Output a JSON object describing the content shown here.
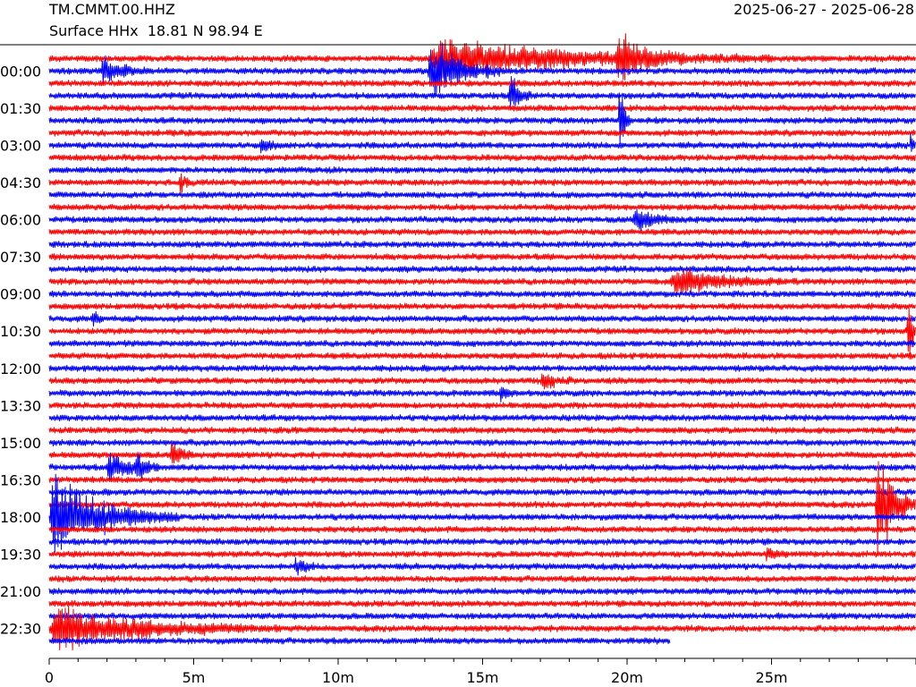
{
  "header": {
    "station": "TM.CMMT.00.HHZ",
    "subtitle": "Surface HHx  18.81 N 98.94 E",
    "date_range": "2025-06-27 - 2025-06-28"
  },
  "colors": {
    "odd": "#ff0000",
    "even": "#0000ff",
    "axis": "#000000"
  },
  "chart_data": {
    "type": "line",
    "plot_kind": "helicorder",
    "minutes_per_line": 30,
    "num_lines": 48,
    "xlim": [
      0,
      30
    ],
    "x_ticks": [
      {
        "value": 0,
        "label": "0"
      },
      {
        "value": 5,
        "label": "5m"
      },
      {
        "value": 10,
        "label": "10m"
      },
      {
        "value": 15,
        "label": "15m"
      },
      {
        "value": 20,
        "label": "20m"
      },
      {
        "value": 25,
        "label": "25m"
      }
    ],
    "y_ticks": [
      {
        "line": 1,
        "label": "00:00"
      },
      {
        "line": 4,
        "label": "01:30"
      },
      {
        "line": 7,
        "label": "03:00"
      },
      {
        "line": 10,
        "label": "04:30"
      },
      {
        "line": 13,
        "label": "06:00"
      },
      {
        "line": 16,
        "label": "07:30"
      },
      {
        "line": 19,
        "label": "09:00"
      },
      {
        "line": 22,
        "label": "10:30"
      },
      {
        "line": 25,
        "label": "12:00"
      },
      {
        "line": 28,
        "label": "13:30"
      },
      {
        "line": 31,
        "label": "15:00"
      },
      {
        "line": 34,
        "label": "16:30"
      },
      {
        "line": 37,
        "label": "18:00"
      },
      {
        "line": 40,
        "label": "19:30"
      },
      {
        "line": 43,
        "label": "21:00"
      },
      {
        "line": 46,
        "label": "22:30"
      }
    ],
    "last_line_end_minute": 21.5,
    "events": [
      {
        "line": 1,
        "start": 1.8,
        "duration": 1.6,
        "amp": 2.2
      },
      {
        "line": 0,
        "start": 13.1,
        "duration": 12.0,
        "amp": 2.8
      },
      {
        "line": 1,
        "start": 13.1,
        "duration": 2.6,
        "amp": 5.0
      },
      {
        "line": 3,
        "start": 15.9,
        "duration": 0.8,
        "amp": 4.0
      },
      {
        "line": 0,
        "start": 19.6,
        "duration": 2.5,
        "amp": 3.0
      },
      {
        "line": 5,
        "start": 19.7,
        "duration": 0.4,
        "amp": 8.0
      },
      {
        "line": 7,
        "start": 7.3,
        "duration": 0.8,
        "amp": 1.2
      },
      {
        "line": 10,
        "start": 4.5,
        "duration": 0.5,
        "amp": 1.5
      },
      {
        "line": 13,
        "start": 20.2,
        "duration": 1.8,
        "amp": 1.6
      },
      {
        "line": 18,
        "start": 21.5,
        "duration": 4.5,
        "amp": 2.0
      },
      {
        "line": 21,
        "start": 1.5,
        "duration": 0.4,
        "amp": 1.3
      },
      {
        "line": 26,
        "start": 17.0,
        "duration": 1.2,
        "amp": 1.4
      },
      {
        "line": 27,
        "start": 15.6,
        "duration": 0.5,
        "amp": 1.3
      },
      {
        "line": 32,
        "start": 4.2,
        "duration": 0.8,
        "amp": 2.4
      },
      {
        "line": 33,
        "start": 2.0,
        "duration": 1.8,
        "amp": 2.5
      },
      {
        "line": 33,
        "start": 3.0,
        "duration": 0.8,
        "amp": 1.8
      },
      {
        "line": 37,
        "start": 0.0,
        "duration": 4.5,
        "amp": 5.5
      },
      {
        "line": 41,
        "start": 8.5,
        "duration": 0.8,
        "amp": 1.5
      },
      {
        "line": 40,
        "start": 24.8,
        "duration": 0.8,
        "amp": 1.2
      },
      {
        "line": 46,
        "start": 0.0,
        "duration": 8.0,
        "amp": 3.0
      },
      {
        "line": 36,
        "start": 28.6,
        "duration": 1.4,
        "amp": 9.0
      },
      {
        "line": 22,
        "start": 29.7,
        "duration": 0.3,
        "amp": 9.0
      },
      {
        "line": 7,
        "start": 29.8,
        "duration": 0.2,
        "amp": 2.0
      }
    ]
  }
}
